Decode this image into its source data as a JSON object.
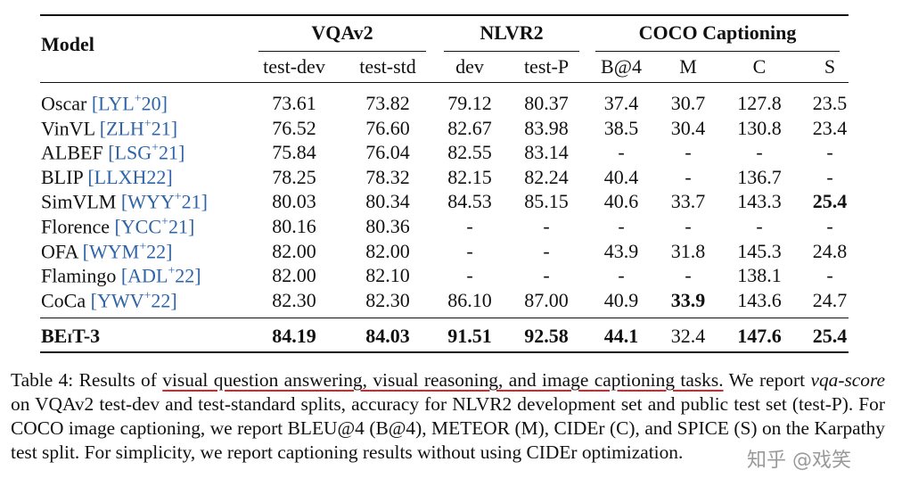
{
  "table": {
    "model_header": "Model",
    "groups": [
      "VQAv2",
      "NLVR2",
      "COCO Captioning"
    ],
    "subheaders": [
      "test-dev",
      "test-std",
      "dev",
      "test-P",
      "B@4",
      "M",
      "C",
      "S"
    ],
    "rows": [
      {
        "model": "Oscar",
        "cite": {
          "pre": "[LYL",
          "sup": "+",
          "post": "20]"
        },
        "cells": [
          "73.61",
          "73.82",
          "79.12",
          "80.37",
          "37.4",
          "30.7",
          "127.8",
          "23.5"
        ],
        "bold": []
      },
      {
        "model": "VinVL",
        "cite": {
          "pre": "[ZLH",
          "sup": "+",
          "post": "21]"
        },
        "cells": [
          "76.52",
          "76.60",
          "82.67",
          "83.98",
          "38.5",
          "30.4",
          "130.8",
          "23.4"
        ],
        "bold": []
      },
      {
        "model": "ALBEF",
        "cite": {
          "pre": "[LSG",
          "sup": "+",
          "post": "21]"
        },
        "cells": [
          "75.84",
          "76.04",
          "82.55",
          "83.14",
          "-",
          "-",
          "-",
          "-"
        ],
        "bold": []
      },
      {
        "model": "BLIP",
        "cite": {
          "pre": "[LLXH22]"
        },
        "cells": [
          "78.25",
          "78.32",
          "82.15",
          "82.24",
          "40.4",
          "-",
          "136.7",
          "-"
        ],
        "bold": []
      },
      {
        "model": "SimVLM",
        "cite": {
          "pre": "[WYY",
          "sup": "+",
          "post": "21]"
        },
        "cells": [
          "80.03",
          "80.34",
          "84.53",
          "85.15",
          "40.6",
          "33.7",
          "143.3",
          "25.4"
        ],
        "bold": [
          7
        ]
      },
      {
        "model": "Florence",
        "cite": {
          "pre": "[YCC",
          "sup": "+",
          "post": "21]"
        },
        "cells": [
          "80.16",
          "80.36",
          "-",
          "-",
          "-",
          "-",
          "-",
          "-"
        ],
        "bold": []
      },
      {
        "model": "OFA",
        "cite": {
          "pre": "[WYM",
          "sup": "+",
          "post": "22]"
        },
        "cells": [
          "82.00",
          "82.00",
          "-",
          "-",
          "43.9",
          "31.8",
          "145.3",
          "24.8"
        ],
        "bold": []
      },
      {
        "model": "Flamingo",
        "cite": {
          "pre": "[ADL",
          "sup": "+",
          "post": "22]"
        },
        "cells": [
          "82.00",
          "82.10",
          "-",
          "-",
          "-",
          "-",
          "138.1",
          "-"
        ],
        "bold": []
      },
      {
        "model": "CoCa",
        "cite": {
          "pre": "[YWV",
          "sup": "+",
          "post": "22]"
        },
        "cells": [
          "82.30",
          "82.30",
          "86.10",
          "87.00",
          "40.9",
          "33.9",
          "143.6",
          "24.7"
        ],
        "bold": [
          5
        ]
      },
      {
        "model": "BEiT-3",
        "cells": [
          "84.19",
          "84.03",
          "91.51",
          "92.58",
          "44.1",
          "32.4",
          "147.6",
          "25.4"
        ],
        "bold": [
          0,
          1,
          2,
          3,
          4,
          6,
          7
        ],
        "model_bold": true
      }
    ]
  },
  "caption": [
    {
      "text": "Table 4: Results of "
    },
    {
      "text": "visual question answering, visual reasoning, and image captioning tasks.",
      "style": "underline"
    },
    {
      "text": " We report "
    },
    {
      "text": "vqa-score",
      "style": "italic"
    },
    {
      "text": " on VQAv2 test-dev and test-standard splits, accuracy for NLVR2 development set and public test set (test-P). For COCO image captioning, we report BLEU@4 (B@4), METEOR (M), CIDEr (C), and SPICE (S) on the Karpathy test split. For simplicity, we report captioning results without using CIDEr optimization."
    }
  ],
  "watermark": "知乎 @戏笑"
}
